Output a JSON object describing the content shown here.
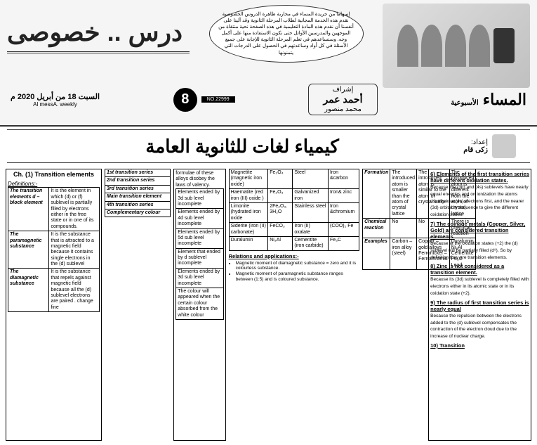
{
  "header": {
    "bubble_text": "إسهاما من جريدة المساء في محاربة ظاهرة الدروس الخصوصية نقدم هذه الخدمة المجانية لطلاب المرحلة الثانوية وقد آلينا على أنفسنا أن نقدم هذه المادة التعليمية في هذه الصفحة نحية منتقاة من الموجهين والمدرسين الأوائل حتى تكون الاستفادة منها على أكمل وجه. وسنساعدهم في تعلم المرحلة الثانوية للإجابة على جميع الأسئلة في كل أواد وساعدتهم في الحصول على الدرجات التي يتمنونها",
    "main_title": "درس .. خصوصى",
    "brand_main": "المساء",
    "brand_sub": "الأسبوعية",
    "eshraf": "إشراف",
    "supervisor_name": "أحمد عمر",
    "supervisor_sub": "محمد منصور",
    "issue_no": "NO.22999",
    "page_number": "8",
    "date_ar": "السبت 18 من أبريل 2020 م",
    "date_en": "Al messA. weekly"
  },
  "subject": {
    "title": "كيمياء لغات للثانوية العامة",
    "author_label": "إعداد:",
    "author_name": "زكى قام"
  },
  "col1": {
    "chapter": "Ch. (1) Transition elements",
    "def_label": "Definitions:-",
    "rows": [
      {
        "h": "The transition elements d – block element",
        "t": "It is the element in which (d) or (f) sublevel is partially filled by electrons either in the free state or in one of its compounds."
      },
      {
        "h": "The paramagnetic substance",
        "t": "It is the substance that is attracted to a magnetic field because it contains single electrons in the (d) sublevel"
      },
      {
        "h": "The diamagnetic substance",
        "t": "It is the substance that repels against magnetic field because all the (d) sublevel electrons are paired . change fine"
      }
    ]
  },
  "col2": {
    "rows": [
      {
        "h": "1st transition series",
        "t": "Elements ended by 3d sub level incomplete"
      },
      {
        "h": "2nd transition series",
        "t": "Elements ended by 4d sub level incomplete"
      },
      {
        "h": "3rd transition series",
        "t": "Elements ended by 5d sub level incomplete"
      },
      {
        "h": "Main transition element",
        "t": "Element that ended by d sublevel incomplete"
      },
      {
        "h": "4th transition series",
        "t": "Elements ended by 3d sub level incomplete"
      },
      {
        "h": "Complementary colour",
        "t": "The colour will appeared when the certain colour absorbed from the white colour"
      }
    ],
    "top_note": "formulae of these alloys disobey the laws of valency."
  },
  "col4_table": {
    "rows": [
      [
        "Magnetite (magnetic iron oxide)",
        "Fe₃O₄",
        "Steel",
        "Iron &carbon"
      ],
      [
        "Haematite (red iron (III) oxide )",
        "Fe₂O₃",
        "Galvanized iron",
        "Iron& zinc"
      ],
      [
        "Limonite (hydrated iron oxide",
        "2Fe₂O₃. 3H₂O",
        "Stainless steel",
        "Iron &chromium"
      ],
      [
        "Siderite (iron (II) carbonate)",
        "FeCO₃",
        "Iron (II) oxalate",
        "(COO)₂ Fe"
      ],
      [
        "Duralumin",
        "Ni₃Al",
        "Cementite (iron carbide)",
        "Fe₃C"
      ]
    ],
    "rel_head": "Relations and applications:-",
    "rel_items": [
      "Magnetic moment of diamagnetic substance = zero and it is colourless substance.",
      "Magnetic moment of paramagnetic substance ranges between (1:5) and is coloured substance."
    ]
  },
  "col5_table": {
    "rows": [
      [
        "Formation",
        "The introduced atom is smaller than the atom of crystal lattice",
        "The introduced atom is similar to the atom of crystal lattice",
        "The introduced atom is different from the atom of crystal lattice"
      ],
      [
        "Chemical reaction",
        "No",
        "No",
        "There is chemical reaction"
      ],
      [
        "Examples",
        "Carbon – iron alloy (steel)",
        "Copper – gold alloys Ferronickel – Ferrochromiu",
        "Duralumin Ni₃Al Cementite Fe₃C Lead"
      ]
    ]
  },
  "col6": {
    "items": [
      {
        "n": "6)",
        "h": "Elements of the first transition series have different oxidation states.",
        "t": "Because the (3d) and (4s) sublevels have nearly equal energies and on ionization the atoms usually lose (4s) electrons first, and the nearer (3d) orbital in sequence to give the different oxidation states."
      },
      {
        "n": "7)",
        "h": "The coinage metals (Copper, Silver, Gold) are considered transition elements.",
        "t": "Because at the oxidation states (+2) the (d) sublevel will be partially filled (d⁹), So by definition they are transition elements."
      },
      {
        "n": "8)",
        "h": "Zinc is not considered as a transition element.",
        "t": "Because its (3d) sublevel is completely filled with electrons either in its atomic state or in its oxidation state (+2)."
      },
      {
        "n": "9)",
        "h": "The radius of first transition series is nearly equal",
        "t": "Because the repulsion between the electrons added to the (d) sublevel compensates the contraction of the electron cloud due to the increase of nuclear charge."
      },
      {
        "n": "10)",
        "h": "Transition",
        "t": ""
      }
    ]
  }
}
